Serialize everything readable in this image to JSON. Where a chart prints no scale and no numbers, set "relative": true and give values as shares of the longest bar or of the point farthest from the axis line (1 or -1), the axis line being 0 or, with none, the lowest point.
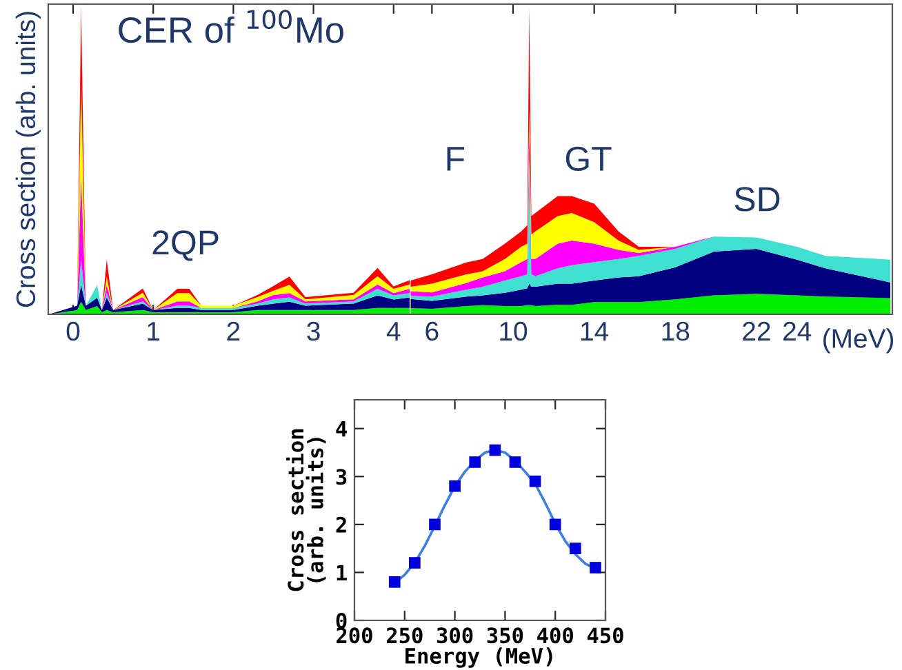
{
  "chart_data": [
    {
      "type": "area",
      "stacked": true,
      "relative": true,
      "title": "CER of $^{100}$Mo",
      "ylabel": "Cross section (arb. units)",
      "xlim": [
        -0.31,
        4.2
      ],
      "xticks": [
        0,
        1,
        2,
        3,
        4
      ],
      "x": [
        -0.3,
        0.05,
        0.1,
        0.16,
        0.3,
        0.36,
        0.42,
        0.5,
        0.87,
        1.0,
        1.3,
        1.45,
        1.6,
        2.0,
        2.3,
        2.5,
        2.7,
        2.9,
        3.5,
        3.8,
        4.0,
        4.2
      ],
      "series": [
        {
          "color": "#00f000",
          "values": [
            0,
            0.014,
            0.041,
            0.014,
            0.027,
            0.007,
            0.014,
            0.007,
            0.014,
            0.007,
            0.007,
            0.007,
            0.007,
            0.007,
            0.014,
            0.014,
            0.014,
            0.014,
            0.014,
            0.021,
            0.021,
            0.021
          ]
        },
        {
          "color": "#000080",
          "values": [
            0,
            0.014,
            0.055,
            0.014,
            0.027,
            0.007,
            0.041,
            0.007,
            0.021,
            0.007,
            0.014,
            0.014,
            0.007,
            0.007,
            0.014,
            0.021,
            0.027,
            0.014,
            0.021,
            0.041,
            0.027,
            0.034
          ]
        },
        {
          "color": "#40e0d0",
          "values": [
            0,
            0,
            0.082,
            0,
            0.041,
            0,
            0.014,
            0,
            0.007,
            0,
            0.007,
            0.007,
            0.007,
            0.007,
            0.007,
            0.014,
            0.014,
            0.007,
            0.007,
            0.021,
            0.014,
            0.014
          ]
        },
        {
          "color": "#ff00ff",
          "values": [
            0,
            0,
            0.274,
            0,
            0,
            0,
            0.027,
            0,
            0.014,
            0,
            0.014,
            0.014,
            0,
            0,
            0.007,
            0.014,
            0.014,
            0.007,
            0.007,
            0.014,
            0.007,
            0.014
          ]
        },
        {
          "color": "#ffff00",
          "values": [
            0,
            0,
            0.301,
            0,
            0,
            0,
            0.027,
            0,
            0.014,
            0,
            0.027,
            0.027,
            0.007,
            0.007,
            0.014,
            0.014,
            0.027,
            0.007,
            0.014,
            0.027,
            0.014,
            0.014
          ]
        },
        {
          "color": "#ff0000",
          "values": [
            0,
            0,
            0.247,
            0,
            0,
            0,
            0.055,
            0,
            0.014,
            0,
            0.014,
            0.014,
            0,
            0,
            0.007,
            0.015,
            0.027,
            0.007,
            0.007,
            0.027,
            0.008,
            0.014
          ]
        }
      ],
      "annotations": [
        "2QP"
      ]
    },
    {
      "type": "area",
      "stacked": true,
      "relative": true,
      "xlabel": "(MeV)",
      "xlim": [
        4.9,
        28.7
      ],
      "xticks": [
        6,
        10,
        14,
        18,
        22,
        24
      ],
      "x": [
        4.95,
        6.0,
        7.7,
        8.5,
        9.6,
        10.4,
        10.7,
        10.8,
        10.9,
        11.1,
        12.2,
        12.9,
        14,
        15.2,
        16.2,
        18,
        19.9,
        22,
        24,
        25.4,
        28.6
      ],
      "series": [
        {
          "color": "#00ee00",
          "values": [
            0.02,
            0.018,
            0.027,
            0.03,
            0.027,
            0.027,
            0.03,
            0.03,
            0.03,
            0.027,
            0.031,
            0.031,
            0.04,
            0.04,
            0.04,
            0.049,
            0.062,
            0.067,
            0.062,
            0.058,
            0.053
          ]
        },
        {
          "color": "#000080",
          "values": [
            0.03,
            0.026,
            0.031,
            0.032,
            0.043,
            0.053,
            0.055,
            0.07,
            0.06,
            0.063,
            0.069,
            0.069,
            0.07,
            0.08,
            0.084,
            0.104,
            0.142,
            0.146,
            0.116,
            0.092,
            0.051
          ]
        },
        {
          "color": "#40e0d0",
          "values": [
            0.01,
            0.014,
            0.022,
            0.028,
            0.04,
            0.044,
            0.045,
            0.4,
            0.04,
            0.034,
            0.05,
            0.06,
            0.06,
            0.06,
            0.066,
            0.06,
            0.049,
            0.037,
            0.042,
            0.04,
            0.074
          ]
        },
        {
          "color": "#ff00ff",
          "values": [
            0.015,
            0.013,
            0.022,
            0.03,
            0.03,
            0.046,
            0.05,
            0.1,
            0.05,
            0.056,
            0.08,
            0.08,
            0.06,
            0.03,
            0.01,
            0.007,
            0,
            0,
            0,
            0,
            0
          ]
        },
        {
          "color": "#ffff00",
          "values": [
            0.015,
            0.029,
            0.028,
            0.02,
            0.04,
            0.05,
            0.05,
            0.07,
            0.08,
            0.09,
            0.09,
            0.09,
            0.07,
            0.03,
            0.01,
            0,
            0,
            0,
            0,
            0,
            0
          ]
        },
        {
          "color": "#ff0000",
          "values": [
            0.02,
            0.03,
            0.039,
            0.04,
            0.05,
            0.05,
            0.06,
            0.33,
            0.06,
            0.06,
            0.065,
            0.055,
            0.06,
            0.03,
            0.01,
            0,
            0,
            0,
            0,
            0,
            0
          ]
        }
      ],
      "annotations": [
        "F",
        "GT",
        "SD"
      ]
    },
    {
      "type": "scatter",
      "xlabel": "Energy (MeV)",
      "ylabel": "Cross section\n(arb. units)",
      "xlim": [
        200,
        450
      ],
      "xticks": [
        200,
        250,
        300,
        350,
        400,
        450
      ],
      "ylim": [
        0,
        4.6
      ],
      "yticks": [
        0,
        1,
        2,
        3,
        4
      ],
      "series": [
        {
          "type": "line",
          "color": "#3d7fe0",
          "x": [
            240,
            250,
            260,
            270,
            280,
            290,
            300,
            310,
            320,
            330,
            340,
            350,
            360,
            370,
            380,
            390,
            400,
            410,
            420,
            430,
            440
          ],
          "values": [
            0.78,
            0.95,
            1.2,
            1.55,
            1.97,
            2.4,
            2.8,
            3.1,
            3.33,
            3.5,
            3.55,
            3.5,
            3.33,
            3.1,
            2.85,
            2.45,
            2.02,
            1.65,
            1.38,
            1.18,
            1.08
          ]
        },
        {
          "type": "scatter",
          "marker": "square",
          "color": "#0000dd",
          "x": [
            240,
            260,
            280,
            300,
            320,
            340,
            360,
            380,
            400,
            420,
            440
          ],
          "values": [
            0.8,
            1.2,
            2.0,
            2.8,
            3.3,
            3.55,
            3.3,
            2.9,
            2.0,
            1.5,
            1.1
          ]
        }
      ]
    }
  ]
}
